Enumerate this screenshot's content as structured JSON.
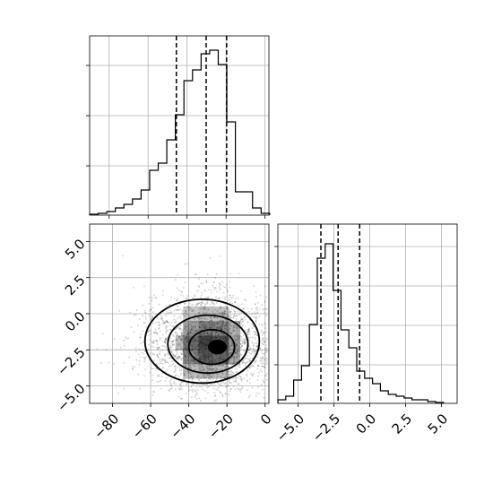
{
  "chart_data": [
    {
      "type": "histogram",
      "panel": "top-left",
      "variable_index": 0,
      "xlim": [
        -90,
        2
      ],
      "ylim": [
        0,
        1
      ],
      "grid": true,
      "bin_edges": [
        -90,
        -85.6,
        -81.2,
        -76.8,
        -72.4,
        -68.0,
        -63.6,
        -59.2,
        -54.8,
        -50.4,
        -46.0,
        -41.6,
        -37.2,
        -32.8,
        -28.4,
        -24.0,
        -19.6,
        -15.2,
        -10.8,
        -6.4,
        -2.0,
        2.4
      ],
      "counts_normalized": [
        0.005,
        0.01,
        0.02,
        0.04,
        0.06,
        0.09,
        0.14,
        0.25,
        0.29,
        0.42,
        0.56,
        0.75,
        0.81,
        0.9,
        0.92,
        0.84,
        0.52,
        0.13,
        0.13,
        0.04,
        0.01
      ],
      "quantile_lines": [
        -45.5,
        -30.2,
        -19.7
      ]
    },
    {
      "type": "scatter-density-contour",
      "panel": "bottom-left",
      "xlim": [
        -92,
        2
      ],
      "ylim": [
        -6.2,
        6.2
      ],
      "x_ticks": [
        -80,
        -60,
        -40,
        -20,
        0
      ],
      "y_ticks": [
        -5.0,
        -2.5,
        0.0,
        2.5,
        5.0
      ],
      "x_tick_labels": [
        "−80",
        "−60",
        "−40",
        "−20",
        "0"
      ],
      "y_tick_labels": [
        "−5.0",
        "−2.5",
        "0.0",
        "2.5",
        "5.0"
      ],
      "grid": true,
      "density_center": [
        -27,
        -2.3
      ],
      "contour_levels": 4
    },
    {
      "type": "histogram",
      "panel": "bottom-right",
      "variable_index": 1,
      "xlim": [
        -6.4,
        6.1
      ],
      "ylim": [
        0,
        1
      ],
      "grid": true,
      "x_ticks": [
        -5.0,
        -2.5,
        0.0,
        2.5,
        5.0
      ],
      "x_tick_labels": [
        "−5.0",
        "−2.5",
        "0.0",
        "2.5",
        "5.0"
      ],
      "bin_edges": [
        -6.4,
        -5.85,
        -5.3,
        -4.75,
        -4.2,
        -3.65,
        -3.1,
        -2.55,
        -2.0,
        -1.45,
        -0.9,
        -0.35,
        0.2,
        0.75,
        1.3,
        1.85,
        2.4,
        2.95,
        3.5,
        4.05,
        4.6,
        5.15
      ],
      "counts_normalized": [
        0.02,
        0.04,
        0.13,
        0.21,
        0.44,
        0.81,
        0.89,
        0.63,
        0.41,
        0.31,
        0.18,
        0.14,
        0.11,
        0.07,
        0.05,
        0.04,
        0.03,
        0.02,
        0.02,
        0.01,
        0.005
      ],
      "quantile_lines": [
        -3.4,
        -2.2,
        -0.7
      ]
    }
  ]
}
